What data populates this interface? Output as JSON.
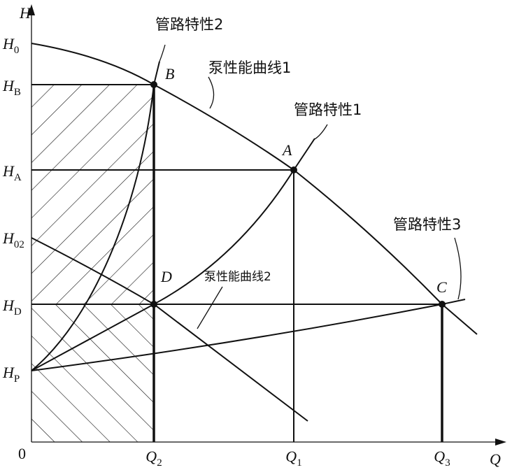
{
  "axes": {
    "y": {
      "symbol": "H"
    },
    "x": {
      "symbol": "Q"
    },
    "origin": "0"
  },
  "y_labels": [
    {
      "symbol": "H",
      "sub": "0"
    },
    {
      "symbol": "H",
      "sub": "B"
    },
    {
      "symbol": "H",
      "sub": "A"
    },
    {
      "symbol": "H",
      "sub": "02"
    },
    {
      "symbol": "H",
      "sub": "D"
    },
    {
      "symbol": "H",
      "sub": "P"
    }
  ],
  "x_labels": [
    {
      "symbol": "Q",
      "sub": "2"
    },
    {
      "symbol": "Q",
      "sub": "1"
    },
    {
      "symbol": "Q",
      "sub": "3"
    }
  ],
  "points": [
    "A",
    "B",
    "C",
    "D"
  ],
  "curves": {
    "pipe2": "管路特性2",
    "pump1": "泵性能曲线1",
    "pipe1": "管路特性1",
    "pump2": "泵性能曲线2",
    "pipe3": "管路特性3"
  }
}
